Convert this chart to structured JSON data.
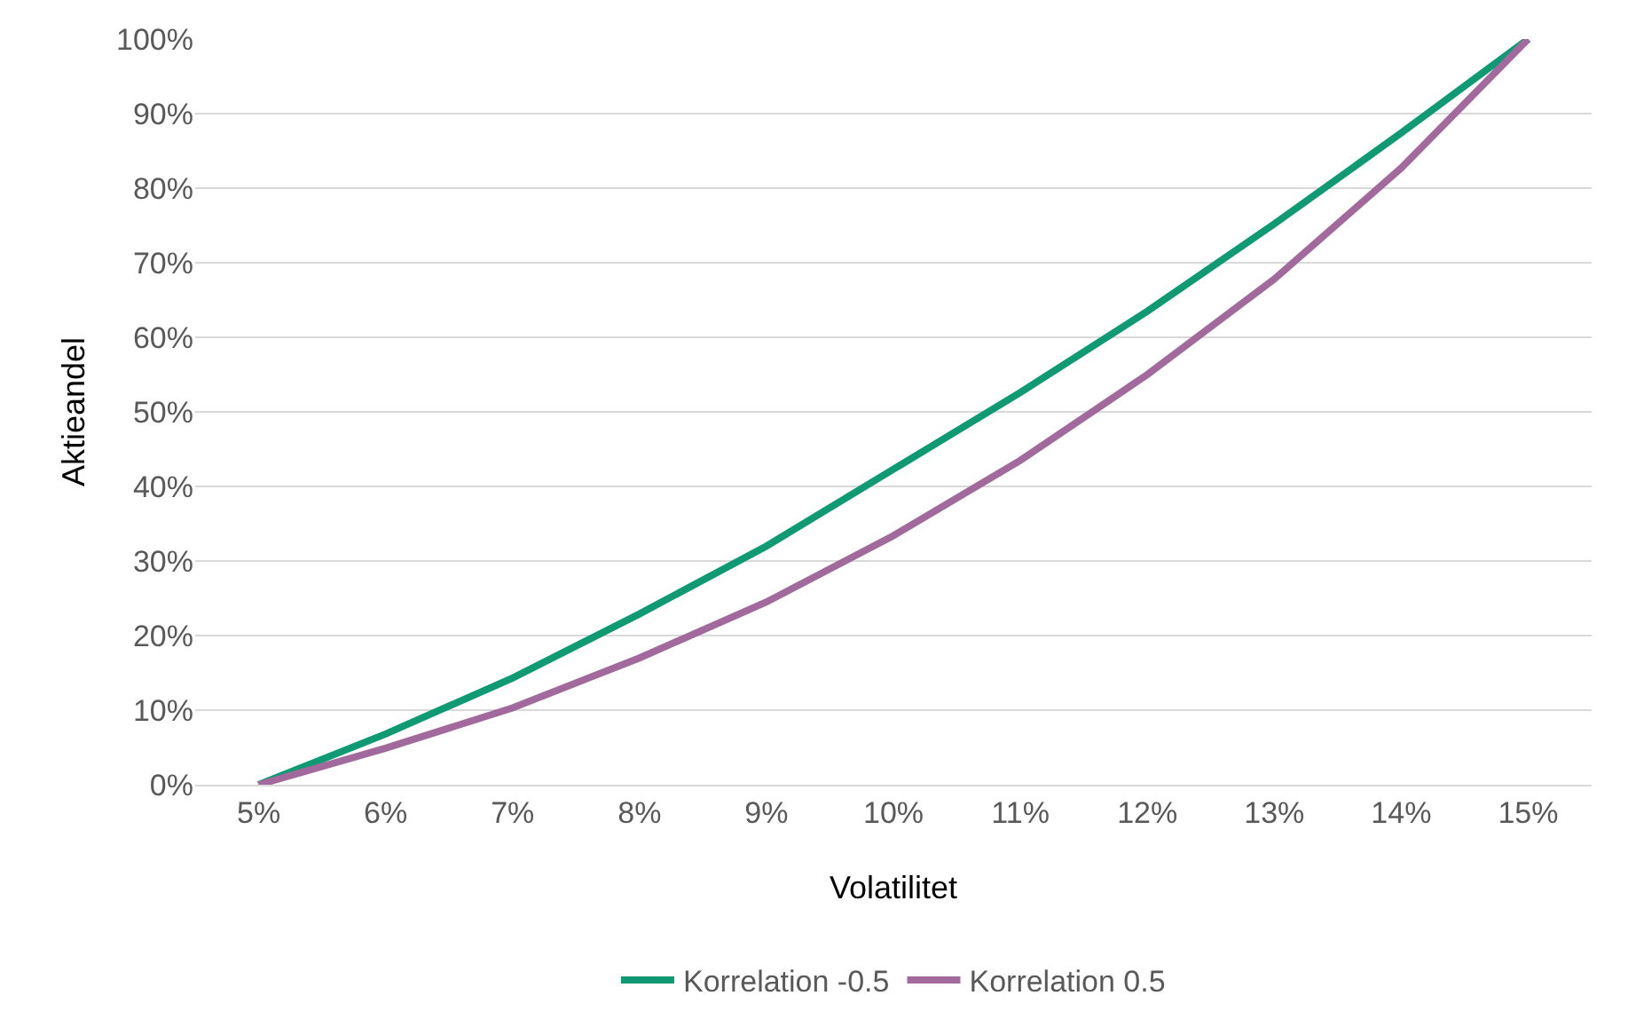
{
  "chart_data": {
    "type": "line",
    "xlabel": "Volatilitet",
    "ylabel": "Aktieandel",
    "categories": [
      "5%",
      "6%",
      "7%",
      "8%",
      "9%",
      "10%",
      "11%",
      "12%",
      "13%",
      "14%",
      "15%"
    ],
    "series": [
      {
        "name": "Korrelation -0.5",
        "color": "#0f9a74",
        "values": [
          0,
          6.8,
          14.3,
          22.9,
          32,
          42.3,
          52.6,
          63.5,
          75.2,
          87.4,
          100
        ]
      },
      {
        "name": "Korrelation 0.5",
        "color": "#a26a9c",
        "values": [
          0,
          4.9,
          10.3,
          17,
          24.5,
          33.4,
          43.5,
          55,
          67.8,
          82.7,
          100
        ]
      }
    ],
    "ylim": [
      0,
      100
    ],
    "yticks": [
      {
        "value": 0,
        "label": "0%"
      },
      {
        "value": 10,
        "label": "10%"
      },
      {
        "value": 20,
        "label": "20%"
      },
      {
        "value": 30,
        "label": "30%"
      },
      {
        "value": 40,
        "label": "40%"
      },
      {
        "value": 50,
        "label": "50%"
      },
      {
        "value": 60,
        "label": "60%"
      },
      {
        "value": 70,
        "label": "70%"
      },
      {
        "value": 80,
        "label": "80%"
      },
      {
        "value": 90,
        "label": "90%"
      },
      {
        "value": 100,
        "label": "100%"
      }
    ],
    "grid": "y",
    "legend": "bottom",
    "marker": "none",
    "line_style": "solid"
  }
}
